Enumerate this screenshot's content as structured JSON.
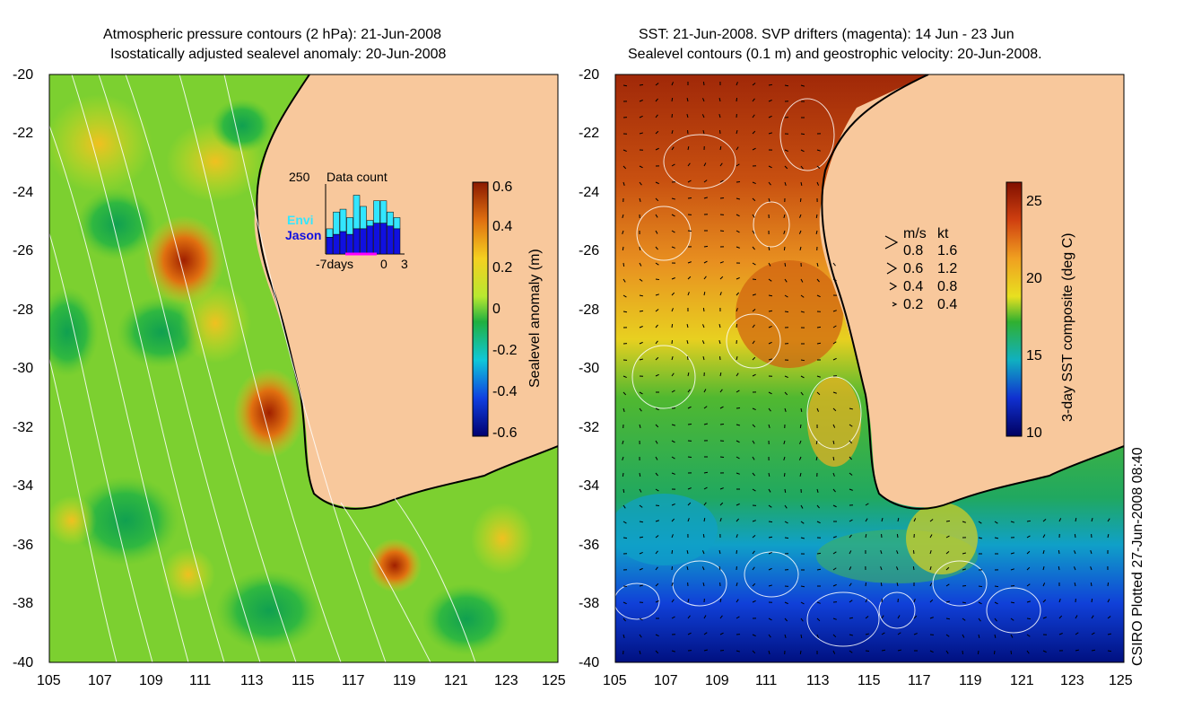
{
  "left_panel": {
    "title_line1": "Atmospheric pressure contours (2 hPa): 21-Jun-2008",
    "title_line2": "Isostatically adjusted sealevel anomaly: 20-Jun-2008",
    "colorbar": {
      "label": "Sealevel anomaly (m)",
      "ticks": [
        "0.6",
        "0.4",
        "0.2",
        "0",
        "-0.2",
        "-0.4",
        "-0.6"
      ]
    },
    "inset": {
      "title": "Data count",
      "ymax_label": "250",
      "series": [
        {
          "name": "Envi",
          "color": "#33e6ff"
        },
        {
          "name": "Jason",
          "color": "#1010e0"
        }
      ],
      "x_labels": [
        "-7days",
        "0",
        "3"
      ],
      "jason_counts": [
        60,
        70,
        80,
        70,
        90,
        90,
        100,
        110,
        110,
        100,
        90
      ],
      "total_counts": [
        90,
        150,
        160,
        130,
        210,
        170,
        120,
        190,
        190,
        150,
        130
      ]
    }
  },
  "right_panel": {
    "title_line1": "SST: 21-Jun-2008. SVP drifters (magenta): 14 Jun - 23 Jun",
    "title_line2": "Sealevel contours (0.1 m) and geostrophic velocity: 20-Jun-2008.",
    "colorbar": {
      "label": "3-day SST composite (deg C)",
      "ticks": [
        "25",
        "20",
        "15",
        "10"
      ]
    },
    "velocity_legend": {
      "header_ms": "m/s",
      "header_kt": "kt",
      "rows": [
        {
          "ms": "0.8",
          "kt": "1.6"
        },
        {
          "ms": "0.6",
          "kt": "1.2"
        },
        {
          "ms": "0.4",
          "kt": "0.8"
        },
        {
          "ms": "0.2",
          "kt": "0.4"
        }
      ]
    },
    "credit": "CSIRO Plotted 27-Jun-2008 08:40"
  },
  "axes": {
    "y_ticks": [
      "-20",
      "-22",
      "-24",
      "-26",
      "-28",
      "-30",
      "-32",
      "-34",
      "-36",
      "-38",
      "-40"
    ],
    "x_ticks": [
      "105",
      "107",
      "109",
      "111",
      "113",
      "115",
      "117",
      "119",
      "121",
      "123",
      "125"
    ]
  },
  "colors": {
    "land": "#f8c89c",
    "contour": "#ffffff"
  }
}
